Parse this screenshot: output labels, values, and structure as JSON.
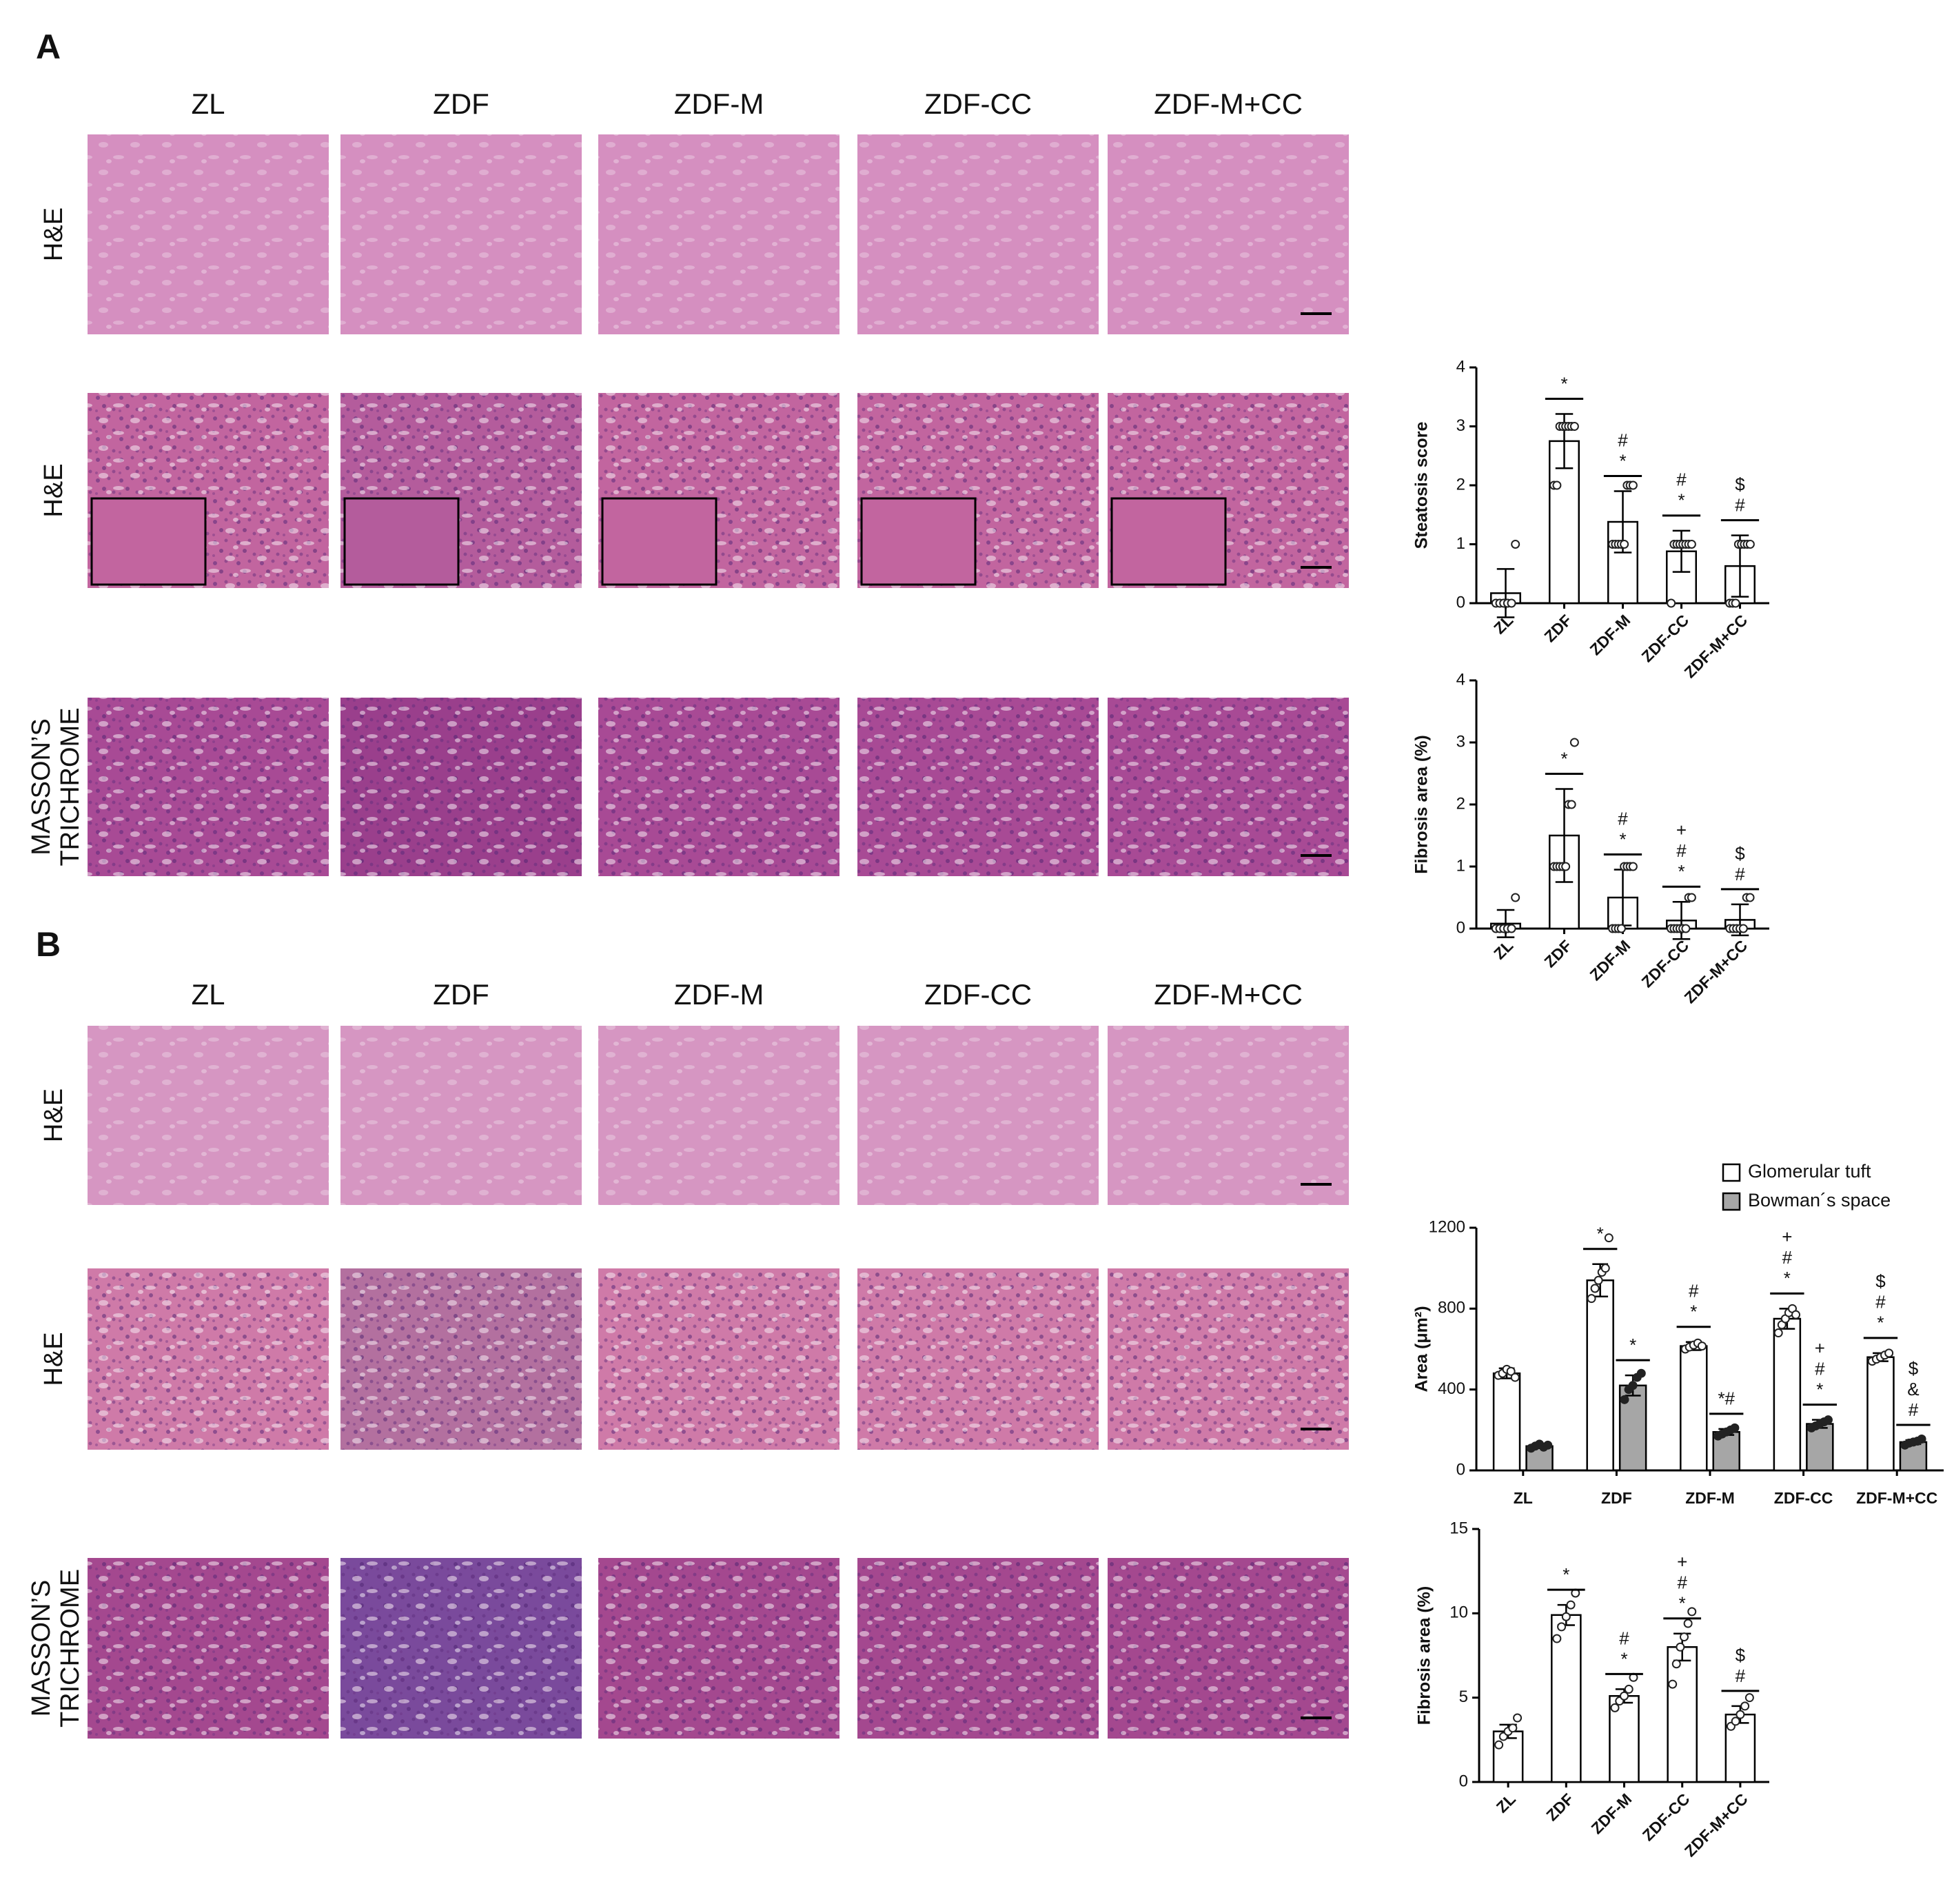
{
  "panels": [
    {
      "letter": "A",
      "columns": [
        "ZL",
        "ZDF",
        "ZDF-M",
        "ZDF-CC",
        "ZDF-M+CC"
      ],
      "rows": [
        [
          "H&E"
        ],
        [
          "H&E"
        ],
        [
          "MASSON’S",
          "TRICHROME"
        ]
      ]
    },
    {
      "letter": "B",
      "columns": [
        "ZL",
        "ZDF",
        "ZDF-M",
        "ZDF-CC",
        "ZDF-M+CC"
      ],
      "rows": [
        [
          "H&E"
        ],
        [
          "H&E"
        ],
        [
          "MASSON’S",
          "TRICHROME"
        ]
      ]
    }
  ],
  "chart_data": [
    {
      "type": "bar",
      "ylabel": "Steatosis score",
      "categories": [
        "ZL",
        "ZDF",
        "ZDF-M",
        "ZDF-CC",
        "ZDF-M+CC"
      ],
      "values": [
        0.17,
        2.75,
        1.38,
        0.88,
        0.63
      ],
      "errors": [
        0.41,
        0.46,
        0.52,
        0.35,
        0.52
      ],
      "color": "#ffffff",
      "points": [
        [
          0,
          0,
          0,
          0,
          0,
          1
        ],
        [
          2,
          2,
          3,
          3,
          3,
          3,
          3,
          3
        ],
        [
          1,
          1,
          1,
          1,
          1,
          2,
          2,
          2
        ],
        [
          0,
          1,
          1,
          1,
          1,
          1,
          1,
          1
        ],
        [
          0,
          0,
          0,
          1,
          1,
          1,
          1,
          1
        ]
      ],
      "annotations": [
        null,
        [
          "*"
        ],
        [
          "#",
          "*"
        ],
        [
          "#",
          "*"
        ],
        [
          "$",
          "#"
        ]
      ],
      "ylim": [
        0,
        4
      ],
      "yticks": [
        0,
        1,
        2,
        3,
        4
      ]
    },
    {
      "type": "bar",
      "ylabel": "Fibrosis area (%)",
      "categories": [
        "ZL",
        "ZDF",
        "ZDF-M",
        "ZDF-CC",
        "ZDF-M+CC"
      ],
      "values": [
        0.08,
        1.5,
        0.5,
        0.13,
        0.14
      ],
      "errors": [
        0.22,
        0.75,
        0.45,
        0.3,
        0.25
      ],
      "color": "#ffffff",
      "points": [
        [
          0,
          0,
          0,
          0,
          0,
          0.5
        ],
        [
          1,
          1,
          1,
          1,
          1,
          2,
          2,
          3
        ],
        [
          0,
          0,
          0,
          0,
          1,
          1,
          1,
          1
        ],
        [
          0,
          0,
          0,
          0,
          0,
          0,
          0.5,
          0.5
        ],
        [
          0,
          0,
          0,
          0,
          0,
          0.5,
          0.5
        ]
      ],
      "annotations": [
        null,
        [
          "*"
        ],
        [
          "#",
          "*"
        ],
        [
          "+",
          "#",
          "*"
        ],
        [
          "$",
          "#"
        ]
      ],
      "ylim": [
        0,
        4
      ],
      "yticks": [
        0,
        1,
        2,
        3,
        4
      ]
    },
    {
      "type": "bar",
      "ylabel": "Area (μm²)",
      "categories": [
        "ZL",
        "ZDF",
        "ZDF-M",
        "ZDF-CC",
        "ZDF-M+CC"
      ],
      "series": [
        {
          "name": "Glomerular tuft",
          "color": "#ffffff",
          "values": [
            480,
            940,
            615,
            750,
            560
          ],
          "errors": [
            25,
            80,
            20,
            50,
            20
          ],
          "points": [
            [
              470,
              480,
              500,
              490,
              460
            ],
            [
              850,
              900,
              940,
              980,
              1000,
              1150
            ],
            [
              600,
              610,
              620,
              630,
              615
            ],
            [
              680,
              720,
              750,
              780,
              800,
              770
            ],
            [
              540,
              550,
              560,
              570,
              580
            ]
          ],
          "annotations": [
            null,
            [
              "*"
            ],
            [
              "#",
              "*"
            ],
            [
              "+",
              "#",
              "*"
            ],
            [
              "$",
              "#",
              "*"
            ]
          ]
        },
        {
          "name": "Bowman´s space",
          "color": "#a6a6a6",
          "values": [
            120,
            420,
            190,
            230,
            140
          ],
          "errors": [
            10,
            50,
            15,
            20,
            10
          ],
          "points": [
            [
              110,
              120,
              130,
              115,
              125
            ],
            [
              350,
              400,
              420,
              460,
              480
            ],
            [
              170,
              180,
              190,
              200,
              210
            ],
            [
              210,
              220,
              230,
              240,
              250
            ],
            [
              125,
              135,
              140,
              145,
              155
            ]
          ],
          "annotations": [
            null,
            [
              "*"
            ],
            [
              "*#"
            ],
            [
              "+",
              "#",
              "*"
            ],
            [
              "$",
              "&",
              "#"
            ]
          ]
        }
      ],
      "legend": "top-right",
      "ylim": [
        0,
        1200
      ],
      "yticks": [
        0,
        400,
        800,
        1200
      ]
    },
    {
      "type": "bar",
      "ylabel": "Fibrosis area (%)",
      "categories": [
        "ZL",
        "ZDF",
        "ZDF-M",
        "ZDF-CC",
        "ZDF-M+CC"
      ],
      "values": [
        3.0,
        9.9,
        5.1,
        8.0,
        4.0
      ],
      "errors": [
        0.4,
        0.6,
        0.4,
        0.8,
        0.5
      ],
      "color": "#ffffff",
      "points": [
        [
          2.2,
          2.7,
          3.0,
          3.2,
          3.8
        ],
        [
          8.5,
          9.2,
          9.8,
          10.5,
          11.2
        ],
        [
          4.4,
          4.8,
          5.1,
          5.5,
          6.2
        ],
        [
          5.8,
          7.0,
          8.0,
          8.6,
          9.4,
          10.1
        ],
        [
          3.3,
          3.6,
          4.0,
          4.5,
          5.0
        ]
      ],
      "annotations": [
        null,
        [
          "*"
        ],
        [
          "#",
          "*"
        ],
        [
          "+",
          "#",
          "*"
        ],
        [
          "$",
          "#"
        ]
      ],
      "ylim": [
        0,
        15
      ],
      "yticks": [
        0,
        5,
        10,
        15
      ]
    }
  ]
}
